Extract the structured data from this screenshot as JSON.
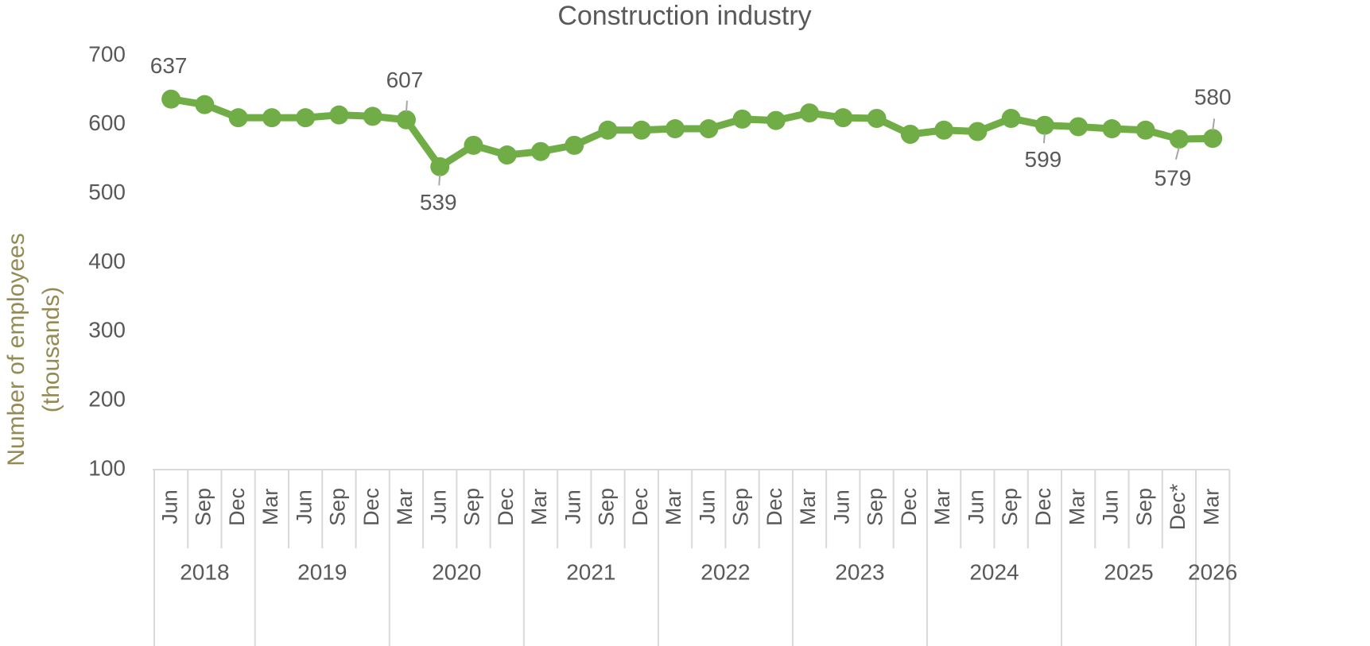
{
  "chart_data": {
    "type": "line",
    "title": "Construction industry",
    "ylabel": [
      "Number of employees",
      "(thousands)"
    ],
    "categories": [
      "Jun",
      "Sep",
      "Dec",
      "Mar",
      "Jun",
      "Sep",
      "Dec",
      "Mar",
      "Jun",
      "Sep",
      "Dec",
      "Mar",
      "Jun",
      "Sep",
      "Dec",
      "Mar",
      "Jun",
      "Sep",
      "Dec",
      "Mar",
      "Jun",
      "Sep",
      "Dec",
      "Mar",
      "Jun",
      "Sep",
      "Dec",
      "Mar",
      "Jun",
      "Sep",
      "Dec*",
      "Mar"
    ],
    "x_groups": [
      {
        "label": "2018",
        "span": 3
      },
      {
        "label": "2019",
        "span": 4
      },
      {
        "label": "2020",
        "span": 4
      },
      {
        "label": "2021",
        "span": 4
      },
      {
        "label": "2022",
        "span": 4
      },
      {
        "label": "2023",
        "span": 4
      },
      {
        "label": "2024",
        "span": 4
      },
      {
        "label": "2025",
        "span": 4
      },
      {
        "label": "2026",
        "span": 1
      }
    ],
    "series": [
      {
        "name": "Construction industry",
        "color": "#70ad47",
        "values": [
          637,
          629,
          610,
          610,
          610,
          614,
          612,
          607,
          539,
          570,
          556,
          561,
          570,
          592,
          592,
          594,
          594,
          608,
          606,
          617,
          610,
          609,
          586,
          592,
          590,
          609,
          599,
          597,
          594,
          592,
          579,
          580
        ],
        "value_labels": [
          "637",
          null,
          null,
          null,
          null,
          null,
          null,
          "607",
          "539",
          null,
          null,
          null,
          null,
          null,
          null,
          null,
          null,
          null,
          null,
          null,
          null,
          null,
          null,
          null,
          null,
          null,
          "599",
          null,
          null,
          null,
          "579",
          "580"
        ]
      }
    ],
    "ylim": [
      100,
      700
    ],
    "yticks": [
      100,
      200,
      300,
      400,
      500,
      600,
      700
    ],
    "grid": false
  }
}
